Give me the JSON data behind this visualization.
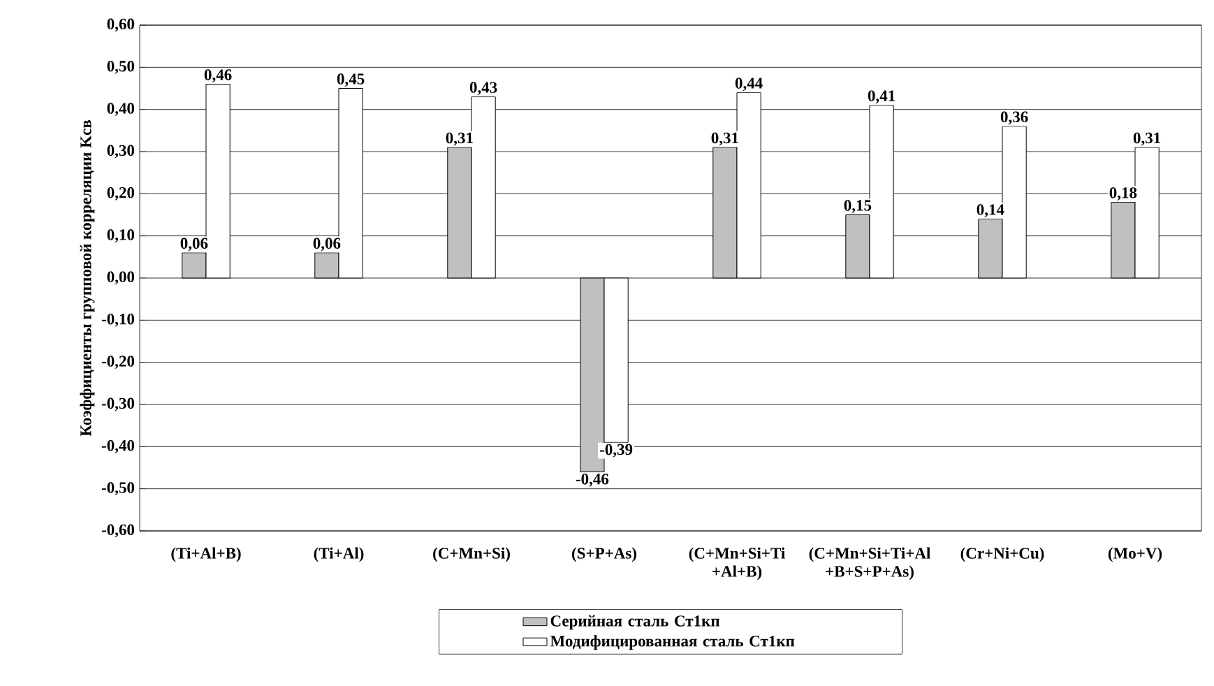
{
  "chart_data": {
    "type": "bar",
    "ylabel": "Коэффициенты групповой корреляции Kсв",
    "categories": [
      "(Ti+Al+B)",
      "(Ti+Al)",
      "(C+Mn+Si)",
      "(S+P+As)",
      "(C+Mn+Si+Ti +Al+B)",
      "(C+Mn+Si+Ti+Al +B+S+P+As)",
      "(Cr+Ni+Cu)",
      "(Mo+V)"
    ],
    "series": [
      {
        "name": "Серийная сталь Ст1кп",
        "color": "#c0c0c0",
        "values": [
          0.06,
          0.06,
          0.31,
          -0.46,
          0.31,
          0.15,
          0.14,
          0.18
        ],
        "value_labels": [
          "0,06",
          "0,06",
          "0,31",
          "-0,46",
          "0,31",
          "0,15",
          "0,14",
          "0,18"
        ]
      },
      {
        "name": "Модифицированная сталь Ст1кп",
        "color": "#ffffff",
        "values": [
          0.46,
          0.45,
          0.43,
          -0.39,
          0.44,
          0.41,
          0.36,
          0.31
        ],
        "value_labels": [
          "0,46",
          "0,45",
          "0,43",
          "-0,39",
          "0,44",
          "0,41",
          "0,36",
          "0,31"
        ]
      }
    ],
    "ylim": [
      -0.6,
      0.6
    ],
    "yticks": [
      {
        "value": 0.6,
        "label": "0,60"
      },
      {
        "value": 0.5,
        "label": "0,50"
      },
      {
        "value": 0.4,
        "label": "0,40"
      },
      {
        "value": 0.3,
        "label": "0,30"
      },
      {
        "value": 0.2,
        "label": "0,20"
      },
      {
        "value": 0.1,
        "label": "0,10"
      },
      {
        "value": 0.0,
        "label": "0,00"
      },
      {
        "value": -0.1,
        "label": "-0,10"
      },
      {
        "value": -0.2,
        "label": "-0,20"
      },
      {
        "value": -0.3,
        "label": "-0,30"
      },
      {
        "value": -0.4,
        "label": "-0,40"
      },
      {
        "value": -0.5,
        "label": "-0,50"
      },
      {
        "value": -0.6,
        "label": "-0,60"
      }
    ],
    "grid": "y",
    "legend": "bottom"
  }
}
